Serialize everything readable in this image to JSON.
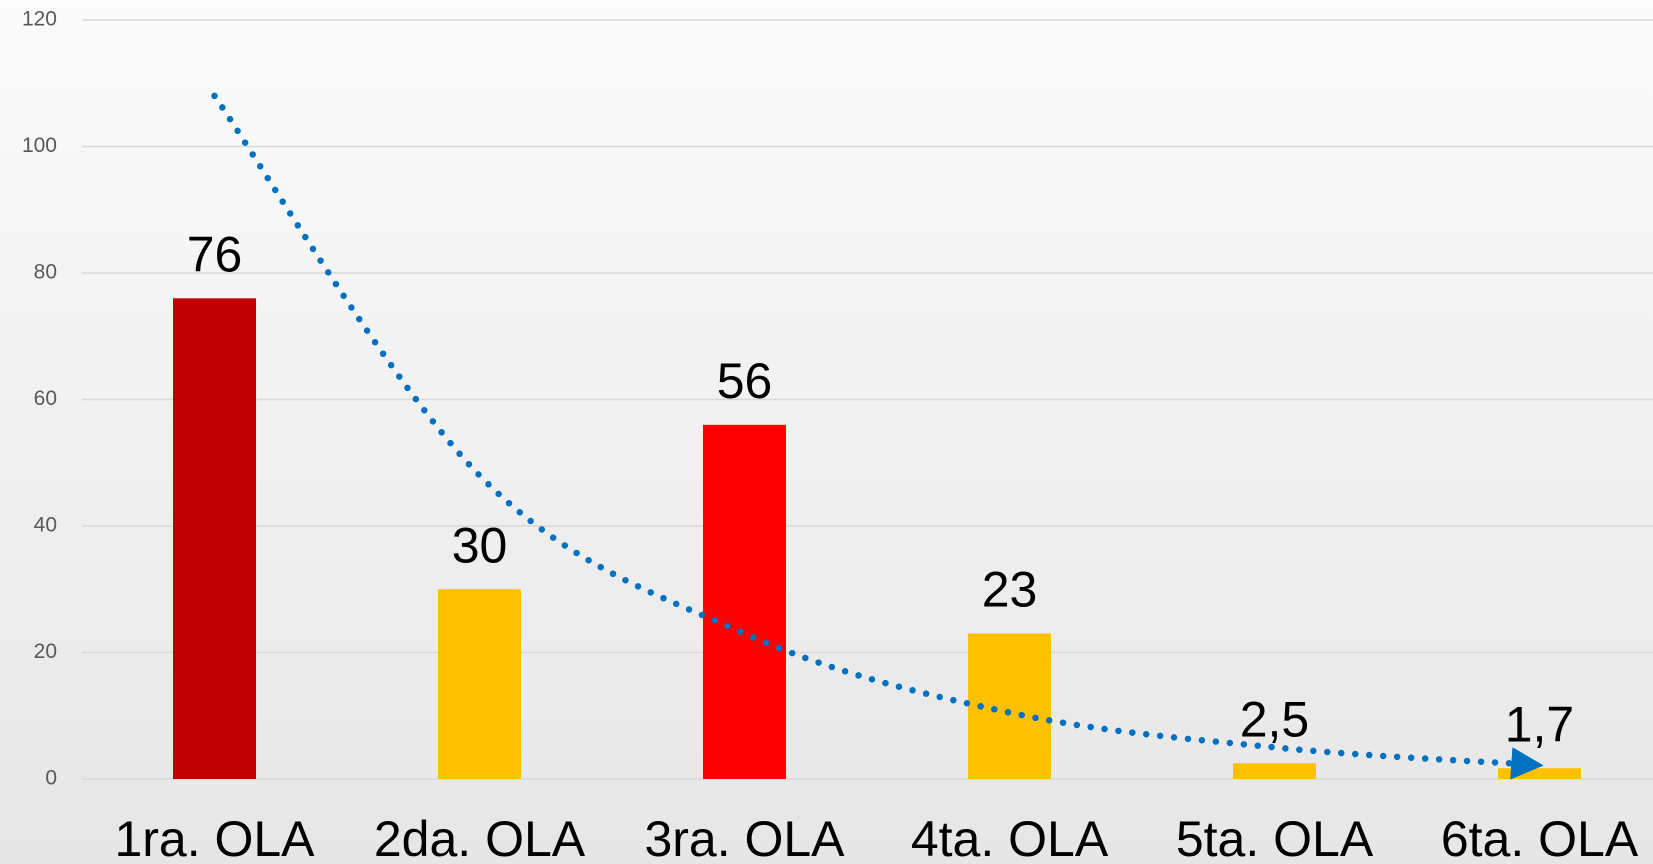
{
  "chart_data": {
    "type": "bar",
    "categories": [
      "1ra. OLA",
      "2da. OLA",
      "3ra. OLA",
      "4ta. OLA",
      "5ta. OLA",
      "6ta. OLA"
    ],
    "values": [
      76,
      30,
      56,
      23,
      2.5,
      1.7
    ],
    "value_labels": [
      "76",
      "30",
      "56",
      "23",
      "2,5",
      "1,7"
    ],
    "colors": [
      "#c00000",
      "#ffc000",
      "#ff0000",
      "#ffc000",
      "#ffc000",
      "#ffc000"
    ],
    "trend": {
      "values": [
        108,
        48,
        23,
        10.5,
        5,
        2.3
      ],
      "color": "#0070c0"
    },
    "ylim": [
      0,
      120
    ],
    "yticks": [
      0,
      20,
      40,
      60,
      80,
      100,
      120
    ],
    "grid": true
  }
}
